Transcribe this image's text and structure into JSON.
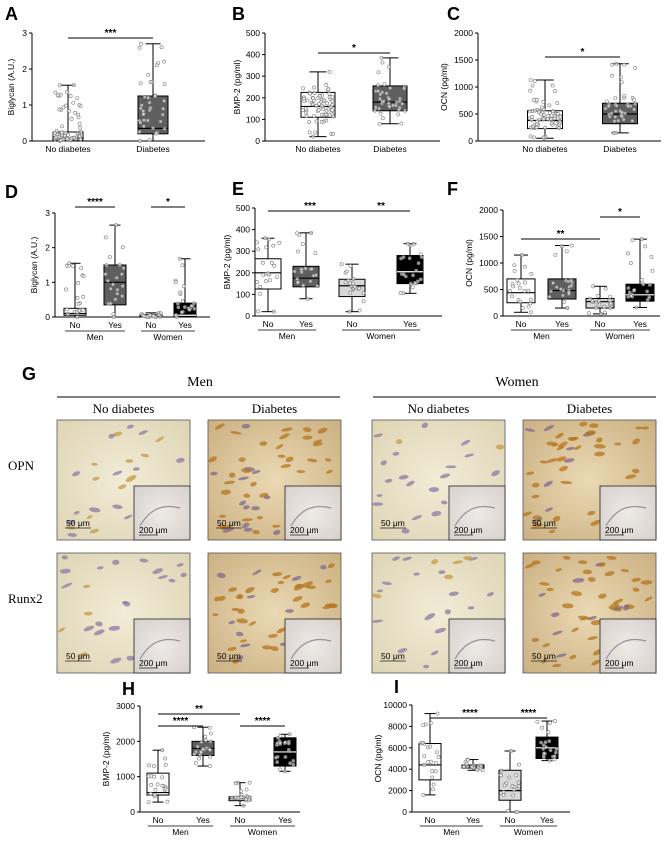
{
  "chart_data": [
    {
      "id": "A",
      "type": "box",
      "ylabel": "Biglycan (A.U.)",
      "ylim": [
        0,
        3
      ],
      "yticks": [
        0,
        1,
        2,
        3
      ],
      "categories": [
        "No diabetes",
        "Diabetes"
      ],
      "boxes": [
        {
          "min": 0,
          "q1": 0.02,
          "median": 0.08,
          "q3": 0.25,
          "max": 1.55,
          "color": "#ffffff"
        },
        {
          "min": 0,
          "q1": 0.2,
          "median": 0.35,
          "q3": 1.25,
          "max": 2.7,
          "color": "#5f5f5f"
        }
      ],
      "significance": [
        {
          "from": 0,
          "to": 1,
          "label": "***"
        }
      ]
    },
    {
      "id": "B",
      "type": "box",
      "ylabel": "BMP-2 (pg/ml)",
      "ylim": [
        0,
        500
      ],
      "yticks": [
        0,
        100,
        200,
        300,
        400,
        500
      ],
      "categories": [
        "No diabetes",
        "Diabetes"
      ],
      "boxes": [
        {
          "min": 20,
          "q1": 110,
          "median": 160,
          "q3": 225,
          "max": 320,
          "color": "#ffffff"
        },
        {
          "min": 80,
          "q1": 140,
          "median": 180,
          "q3": 255,
          "max": 385,
          "color": "#5f5f5f"
        }
      ],
      "significance": [
        {
          "from": 0,
          "to": 1,
          "label": "*"
        }
      ]
    },
    {
      "id": "C",
      "type": "box",
      "ylabel": "OCN (pg/ml)",
      "ylim": [
        0,
        2000
      ],
      "yticks": [
        0,
        500,
        1000,
        1500,
        2000
      ],
      "categories": [
        "No diabetes",
        "Diabetes"
      ],
      "boxes": [
        {
          "min": 50,
          "q1": 230,
          "median": 380,
          "q3": 560,
          "max": 1130,
          "color": "#ffffff"
        },
        {
          "min": 150,
          "q1": 320,
          "median": 500,
          "q3": 700,
          "max": 1430,
          "color": "#5f5f5f"
        }
      ],
      "significance": [
        {
          "from": 0,
          "to": 1,
          "label": "*"
        }
      ]
    },
    {
      "id": "D",
      "type": "box",
      "ylabel": "Biglycan (A.U.)",
      "ylim": [
        0,
        3
      ],
      "yticks": [
        0,
        1,
        2,
        3
      ],
      "categories": [
        "No",
        "Yes",
        "No",
        "Yes"
      ],
      "groups": [
        "Men",
        "Women"
      ],
      "boxes": [
        {
          "min": 0,
          "q1": 0.05,
          "median": 0.1,
          "q3": 0.25,
          "max": 1.55,
          "color": "#ffffff"
        },
        {
          "min": 0,
          "q1": 0.35,
          "median": 1.0,
          "q3": 1.5,
          "max": 2.65,
          "color": "#5f5f5f"
        },
        {
          "min": 0,
          "q1": 0.0,
          "median": 0.02,
          "q3": 0.07,
          "max": 0.12,
          "color": "#d8d8d8"
        },
        {
          "min": 0,
          "q1": 0.0,
          "median": 0.05,
          "q3": 0.4,
          "max": 1.68,
          "color": "#000000"
        }
      ],
      "significance": [
        {
          "from": 0,
          "to": 1,
          "label": "****"
        },
        {
          "from": 2,
          "to": 3,
          "label": "*"
        }
      ]
    },
    {
      "id": "E",
      "type": "box",
      "ylabel": "BMP-2 (pg/ml)",
      "ylim": [
        0,
        500
      ],
      "yticks": [
        0,
        100,
        200,
        300,
        400,
        500
      ],
      "categories": [
        "No",
        "Yes",
        "No",
        "Yes"
      ],
      "groups": [
        "Men",
        "Women"
      ],
      "boxes": [
        {
          "min": 20,
          "q1": 125,
          "median": 200,
          "q3": 265,
          "max": 360,
          "color": "#ffffff"
        },
        {
          "min": 80,
          "q1": 135,
          "median": 175,
          "q3": 230,
          "max": 385,
          "color": "#5f5f5f"
        },
        {
          "min": 20,
          "q1": 90,
          "median": 140,
          "q3": 170,
          "max": 240,
          "color": "#d8d8d8"
        },
        {
          "min": 105,
          "q1": 150,
          "median": 205,
          "q3": 280,
          "max": 335,
          "color": "#000000"
        }
      ],
      "significance": [
        {
          "from": 0,
          "to": 2,
          "label": "***"
        },
        {
          "from": 2,
          "to": 3,
          "label": "**"
        }
      ]
    },
    {
      "id": "F",
      "type": "box",
      "ylabel": "OCN (pg/ml)",
      "ylim": [
        0,
        2000
      ],
      "yticks": [
        0,
        500,
        1000,
        1500,
        2000
      ],
      "categories": [
        "No",
        "Yes",
        "No",
        "Yes"
      ],
      "groups": [
        "Men",
        "Women"
      ],
      "boxes": [
        {
          "min": 70,
          "q1": 250,
          "median": 440,
          "q3": 700,
          "max": 1150,
          "color": "#ffffff"
        },
        {
          "min": 150,
          "q1": 320,
          "median": 480,
          "q3": 700,
          "max": 1330,
          "color": "#5f5f5f"
        },
        {
          "min": 40,
          "q1": 150,
          "median": 270,
          "q3": 330,
          "max": 560,
          "color": "#d8d8d8"
        },
        {
          "min": 160,
          "q1": 280,
          "median": 400,
          "q3": 600,
          "max": 1450,
          "color": "#000000"
        }
      ],
      "significance": [
        {
          "from": 0,
          "to": 2,
          "label": "**"
        },
        {
          "from": 2,
          "to": 3,
          "label": "*"
        }
      ]
    },
    {
      "id": "H",
      "type": "box",
      "ylabel": "BMP-2 (pg/ml)",
      "ylim": [
        0,
        3000
      ],
      "yticks": [
        0,
        1000,
        2000,
        3000
      ],
      "categories": [
        "No",
        "Yes",
        "No",
        "Yes"
      ],
      "groups": [
        "Men",
        "Women"
      ],
      "boxes": [
        {
          "min": 280,
          "q1": 480,
          "median": 550,
          "q3": 1100,
          "max": 1750,
          "color": "#ffffff"
        },
        {
          "min": 1300,
          "q1": 1600,
          "median": 1800,
          "q3": 2000,
          "max": 2400,
          "color": "#5f5f5f"
        },
        {
          "min": 180,
          "q1": 320,
          "median": 380,
          "q3": 430,
          "max": 830,
          "color": "#d8d8d8"
        },
        {
          "min": 1150,
          "q1": 1300,
          "median": 1700,
          "q3": 2100,
          "max": 2200,
          "color": "#000000"
        }
      ],
      "significance": [
        {
          "from": 0,
          "to": 2,
          "label": "**"
        },
        {
          "from": 0,
          "to": 1,
          "label": "****"
        },
        {
          "from": 2,
          "to": 3,
          "label": "****"
        }
      ]
    },
    {
      "id": "I",
      "type": "box",
      "ylabel": "OCN (pg/ml)",
      "ylim": [
        0,
        10000
      ],
      "yticks": [
        0,
        2000,
        4000,
        6000,
        8000,
        10000
      ],
      "categories": [
        "No",
        "Yes",
        "No",
        "Yes"
      ],
      "groups": [
        "Men",
        "Women"
      ],
      "boxes": [
        {
          "min": 1600,
          "q1": 3000,
          "median": 4400,
          "q3": 6400,
          "max": 9200,
          "color": "#ffffff"
        },
        {
          "min": 3900,
          "q1": 4100,
          "median": 4200,
          "q3": 4400,
          "max": 4900,
          "color": "#5f5f5f"
        },
        {
          "min": 0,
          "q1": 1100,
          "median": 2000,
          "q3": 3900,
          "max": 5700,
          "color": "#d8d8d8"
        },
        {
          "min": 4800,
          "q1": 5000,
          "median": 6000,
          "q3": 7000,
          "max": 8500,
          "color": "#000000"
        }
      ],
      "significance": [
        {
          "from": 0,
          "to": 2,
          "label": "****"
        },
        {
          "from": 2,
          "to": 3,
          "label": "****"
        }
      ]
    }
  ],
  "panel_g": {
    "label": "G",
    "groups": [
      "Men",
      "Women"
    ],
    "conditions": [
      "No diabetes",
      "Diabetes",
      "No diabetes",
      "Diabetes"
    ],
    "rows": [
      "OPN",
      "Runx2"
    ],
    "scale_main": "50 μm",
    "scale_inset": "200 μm"
  }
}
